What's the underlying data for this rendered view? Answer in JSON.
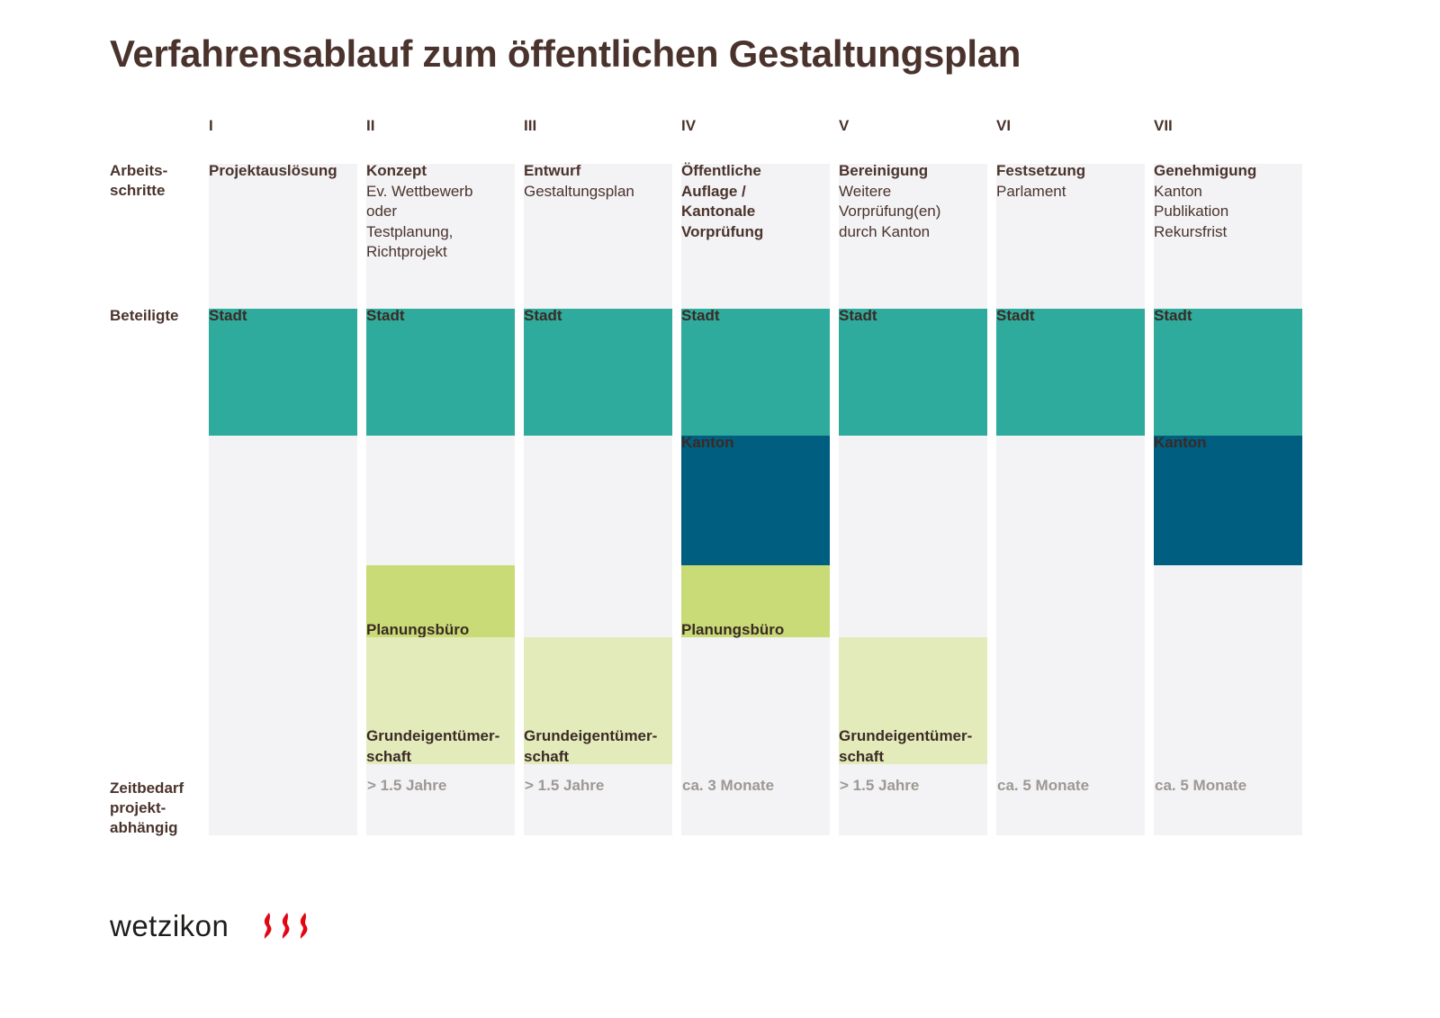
{
  "title": "Verfahrensablauf zum öffentlichen Gestaltungsplan",
  "row_labels": {
    "arbeitsschritte": "Arbeits-\nschritte",
    "beteiligte": "Beteiligte",
    "zeitbedarf": "Zeitbedarf\nprojekt-\nabhängig"
  },
  "colors": {
    "stadt": "#2eab9c",
    "kanton": "#005e80",
    "planungsbuero": "#c8db77",
    "grundeigentuemerschaft": "#e3ebbb",
    "column_bg": "#f3f3f5",
    "logo_red": "#e30613"
  },
  "phases": [
    {
      "roman": "I",
      "step": "Projektauslösung",
      "detail": "",
      "participants": [
        "stadt"
      ],
      "time": ""
    },
    {
      "roman": "II",
      "step": "Konzept",
      "detail": "Ev. Wettbewerb\noder\nTestplanung,\nRichtprojekt",
      "participants": [
        "stadt",
        "planungsbuero",
        "grundeigentuemerschaft"
      ],
      "time": "> 1.5 Jahre"
    },
    {
      "roman": "III",
      "step": "Entwurf",
      "detail": "Gestaltungsplan",
      "participants": [
        "stadt",
        "grundeigentuemerschaft"
      ],
      "time": "> 1.5 Jahre"
    },
    {
      "roman": "IV",
      "step": "Öffentliche\nAuflage /\nKantonale\nVorprüfung",
      "detail": "",
      "participants": [
        "stadt",
        "kanton",
        "planungsbuero"
      ],
      "time": "ca. 3 Monate"
    },
    {
      "roman": "V",
      "step": "Bereinigung",
      "detail": "Weitere\nVorprüfung(en)\ndurch Kanton",
      "participants": [
        "stadt",
        "grundeigentuemerschaft"
      ],
      "time": "> 1.5 Jahre"
    },
    {
      "roman": "VI",
      "step": "Festsetzung",
      "detail": "Parlament",
      "participants": [
        "stadt"
      ],
      "time": "ca. 5 Monate"
    },
    {
      "roman": "VII",
      "step": "Genehmigung",
      "detail": "Kanton\nPublikation\nRekursfrist",
      "participants": [
        "stadt",
        "kanton"
      ],
      "time": "ca. 5 Monate"
    }
  ],
  "participant_labels": {
    "stadt": "Stadt",
    "kanton": "Kanton",
    "planungsbuero": "Planungsbüro",
    "grundeigentuemerschaft": "Grundeigentümer-\nschaft"
  },
  "logo": {
    "text": "wetzikon"
  }
}
